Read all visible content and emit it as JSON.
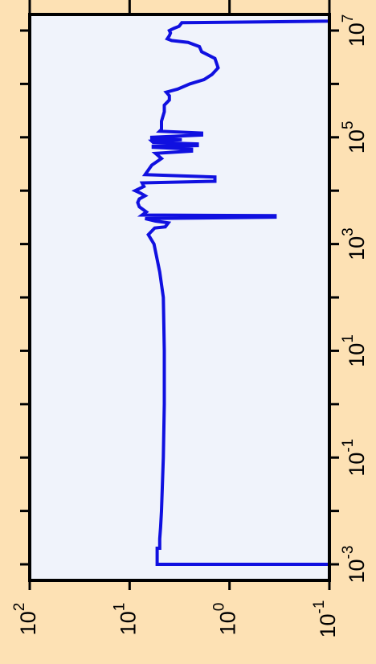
{
  "chart_data": {
    "type": "line",
    "title": "",
    "xlabel": "",
    "ylabel": "",
    "x_scale": "log",
    "y_scale": "log",
    "xlim": [
      0.0005,
      20000000
    ],
    "ylim": [
      0.1,
      100
    ],
    "x_major_ticks": [
      {
        "value": 0.001,
        "base": "10",
        "exp": "-3"
      },
      {
        "value": 0.1,
        "base": "10",
        "exp": "-1"
      },
      {
        "value": 10,
        "base": "10",
        "exp": "1"
      },
      {
        "value": 1000,
        "base": "10",
        "exp": "3"
      },
      {
        "value": 100000,
        "base": "10",
        "exp": "5"
      },
      {
        "value": 10000000,
        "base": "10",
        "exp": "7"
      }
    ],
    "x_minor_ticks": [
      0.01,
      1,
      100,
      10000,
      1000000
    ],
    "y_ticks": [
      {
        "value": 100,
        "base": "10",
        "exp": "2"
      },
      {
        "value": 10,
        "base": "10",
        "exp": "1"
      },
      {
        "value": 1,
        "base": "10",
        "exp": "0"
      },
      {
        "value": 0.1,
        "base": "10",
        "exp": "-1"
      }
    ],
    "grid": false,
    "legend": "none",
    "colors": {
      "line": "#1010e0",
      "plot_bg": "#f0f3fb",
      "page_bg": "#fde1b4"
    },
    "series": [
      {
        "points": [
          [
            0.0008,
            0.1
          ],
          [
            0.001,
            0.1
          ],
          [
            0.001,
            5.3
          ],
          [
            0.002,
            5.3
          ],
          [
            0.002,
            5.0
          ],
          [
            0.003,
            5.0
          ],
          [
            0.005,
            4.9
          ],
          [
            0.01,
            4.8
          ],
          [
            0.1,
            4.6
          ],
          [
            1,
            4.5
          ],
          [
            10,
            4.5
          ],
          [
            100,
            4.6
          ],
          [
            300,
            5.0
          ],
          [
            1000,
            5.7
          ],
          [
            1500,
            6.5
          ],
          [
            2000,
            5.6
          ],
          [
            2100,
            4.4
          ],
          [
            2500,
            4.1
          ],
          [
            2700,
            5.5
          ],
          [
            3000,
            7.0
          ],
          [
            3200,
            0.35
          ],
          [
            3400,
            0.35
          ],
          [
            3500,
            7.5
          ],
          [
            4000,
            6.8
          ],
          [
            5000,
            8.0
          ],
          [
            6000,
            8.3
          ],
          [
            7000,
            8.0
          ],
          [
            8000,
            7.0
          ],
          [
            9000,
            7.8
          ],
          [
            10000,
            8.8
          ],
          [
            12000,
            7.2
          ],
          [
            14000,
            7.5
          ],
          [
            15000,
            1.4
          ],
          [
            18000,
            1.4
          ],
          [
            20000,
            7.0
          ],
          [
            30000,
            6.0
          ],
          [
            40000,
            4.8
          ],
          [
            50000,
            5.5
          ],
          [
            55000,
            2.4
          ],
          [
            60000,
            2.4
          ],
          [
            65000,
            5.8
          ],
          [
            68000,
            5.8
          ],
          [
            70000,
            2.1
          ],
          [
            75000,
            2.1
          ],
          [
            80000,
            5.8
          ],
          [
            85000,
            6.0
          ],
          [
            90000,
            3.0
          ],
          [
            95000,
            6.0
          ],
          [
            100000,
            6.0
          ],
          [
            110000,
            1.9
          ],
          [
            120000,
            1.9
          ],
          [
            130000,
            5.0
          ],
          [
            140000,
            4.8
          ],
          [
            200000,
            4.8
          ],
          [
            300000,
            4.5
          ],
          [
            400000,
            4.5
          ],
          [
            500000,
            4.0
          ],
          [
            600000,
            4.0
          ],
          [
            700000,
            4.3
          ],
          [
            800000,
            3.3
          ],
          [
            1000000,
            2.5
          ],
          [
            1200000,
            1.8
          ],
          [
            1500000,
            1.5
          ],
          [
            2000000,
            1.3
          ],
          [
            3000000,
            1.4
          ],
          [
            4000000,
            1.9
          ],
          [
            5000000,
            2.0
          ],
          [
            6000000,
            2.6
          ],
          [
            6500000,
            3.8
          ],
          [
            7000000,
            4.2
          ],
          [
            8000000,
            4.0
          ],
          [
            9000000,
            3.9
          ],
          [
            10000000,
            4.0
          ],
          [
            11000000,
            3.6
          ],
          [
            12000000,
            3.2
          ],
          [
            14000000,
            3.0
          ],
          [
            15000000,
            0.1
          ],
          [
            20000000,
            0.1
          ]
        ]
      }
    ]
  }
}
